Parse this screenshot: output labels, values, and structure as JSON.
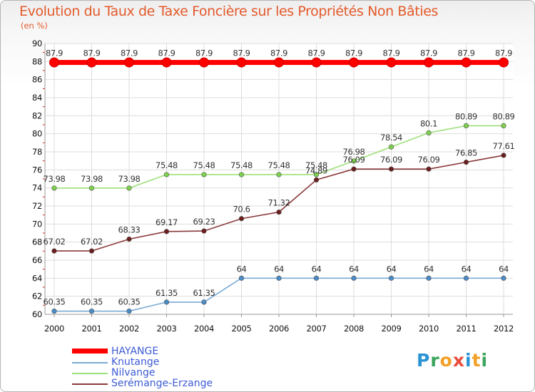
{
  "title": "Evolution du Taux de Taxe Foncière sur les Propriétés Non Bâties",
  "unit_label": "(en %)",
  "logo": {
    "text": "Proxiti",
    "letters": [
      {
        "ch": "P",
        "color": "#2a93d5"
      },
      {
        "ch": "r",
        "color": "#3aa55c"
      },
      {
        "ch": "o",
        "color": "#f2a026"
      },
      {
        "ch": "x",
        "color": "#e84c3d"
      },
      {
        "ch": "i",
        "color": "#2a93d5"
      },
      {
        "ch": "t",
        "color": "#f2a026"
      },
      {
        "ch": "i",
        "color": "#3aa55c"
      }
    ]
  },
  "chart_data": {
    "type": "line",
    "title": "Evolution du Taux de Taxe Foncière sur les Propriétés Non Bâties",
    "ylabel": "(en %)",
    "xlabel": "",
    "categories": [
      "2000",
      "2001",
      "2002",
      "2003",
      "2004",
      "2005",
      "2006",
      "2007",
      "2008",
      "2009",
      "2010",
      "2011",
      "2012"
    ],
    "ylim": [
      60,
      90
    ],
    "yticks": [
      60,
      62,
      64,
      66,
      68,
      70,
      72,
      74,
      76,
      78,
      80,
      82,
      84,
      86,
      88,
      90
    ],
    "grid": true,
    "legend_position": "bottom-left",
    "series": [
      {
        "name": "HAYANGE",
        "color": "#ff0000",
        "thick": true,
        "values": [
          87.9,
          87.9,
          87.9,
          87.9,
          87.9,
          87.9,
          87.9,
          87.9,
          87.9,
          87.9,
          87.9,
          87.9,
          87.9
        ],
        "labels": [
          "87.9",
          "87.9",
          "87.9",
          "87.9",
          "87.9",
          "87.9",
          "87.9",
          "87.9",
          "87.9",
          "87.9",
          "87.9",
          "87.9",
          "87.9"
        ]
      },
      {
        "name": "Knutange",
        "color": "#7aaad4",
        "marker": "#4a8cc8",
        "thick": false,
        "values": [
          60.35,
          60.35,
          60.35,
          61.35,
          61.35,
          64,
          64,
          64,
          64,
          64,
          64,
          64,
          64
        ],
        "labels": [
          "60.35",
          "60.35",
          "60.35",
          "61.35",
          "61.35",
          "64",
          "64",
          "64",
          "64",
          "64",
          "64",
          "64",
          "64"
        ]
      },
      {
        "name": "Nilvange",
        "color": "#9ee07a",
        "marker": "#7dd04e",
        "thick": false,
        "values": [
          73.98,
          73.98,
          73.98,
          75.48,
          75.48,
          75.48,
          75.48,
          75.48,
          76.98,
          78.54,
          80.1,
          80.89,
          80.89
        ],
        "labels": [
          "73.98",
          "73.98",
          "73.98",
          "75.48",
          "75.48",
          "75.48",
          "75.48",
          "75.48",
          "76.98",
          "78.54",
          "80.1",
          "80.89",
          "80.89"
        ]
      },
      {
        "name": "Serémange-Erzange",
        "color": "#8b3a3a",
        "marker": "#6b1e1e",
        "thick": false,
        "values": [
          67.02,
          67.02,
          68.33,
          69.17,
          69.23,
          70.6,
          71.32,
          74.89,
          76.09,
          76.09,
          76.09,
          76.85,
          77.61
        ],
        "labels": [
          "67.02",
          "67.02",
          "68.33",
          "69.17",
          "69.23",
          "70.6",
          "71.32",
          "74.89",
          "76.09",
          "76.09",
          "76.09",
          "76.85",
          "77.61"
        ]
      }
    ]
  }
}
